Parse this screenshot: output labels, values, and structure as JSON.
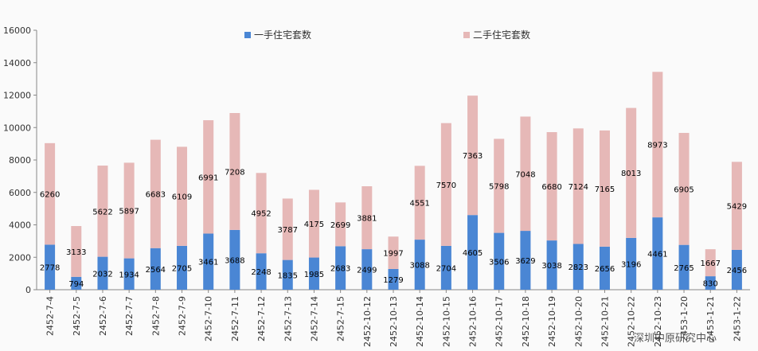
{
  "chart_data": {
    "type": "bar",
    "stacked": true,
    "categories": [
      "2452-7-4",
      "2452-7-5",
      "2452-7-6",
      "2452-7-7",
      "2452-7-8",
      "2452-7-9",
      "2452-7-10",
      "2452-7-11",
      "2452-7-12",
      "2452-7-13",
      "2452-7-14",
      "2452-7-15",
      "2452-10-12",
      "2452-10-13",
      "2452-10-14",
      "2452-10-15",
      "2452-10-16",
      "2452-10-17",
      "2452-10-18",
      "2452-10-19",
      "2452-10-20",
      "2452-10-21",
      "2452-10-22",
      "2452-10-23",
      "2453-1-20",
      "2453-1-21",
      "2453-1-22"
    ],
    "series": [
      {
        "name": "一手住宅套数",
        "color": "#4a86d4",
        "values": [
          2778,
          794,
          2032,
          1934,
          2564,
          2705,
          3461,
          3688,
          2248,
          1835,
          1985,
          2683,
          2499,
          1279,
          3088,
          2704,
          4605,
          3506,
          3629,
          3038,
          2823,
          2656,
          3196,
          4461,
          2765,
          830,
          2456
        ]
      },
      {
        "name": "二手住宅套数",
        "color": "#e6b8b7",
        "values": [
          6260,
          3133,
          5622,
          5897,
          6683,
          6109,
          6991,
          7208,
          4952,
          3787,
          4175,
          2699,
          3881,
          1997,
          4551,
          7570,
          7363,
          5798,
          7048,
          6680,
          7124,
          7165,
          8013,
          8973,
          6905,
          1667,
          5429
        ]
      }
    ],
    "ylim": [
      0,
      16000
    ],
    "yticks": [
      0,
      2000,
      4000,
      6000,
      8000,
      10000,
      12000,
      14000,
      16000
    ],
    "grid": false,
    "legend": "top",
    "title": "",
    "xlabel": "",
    "ylabel": ""
  },
  "watermark": "深圳中原研究中心"
}
